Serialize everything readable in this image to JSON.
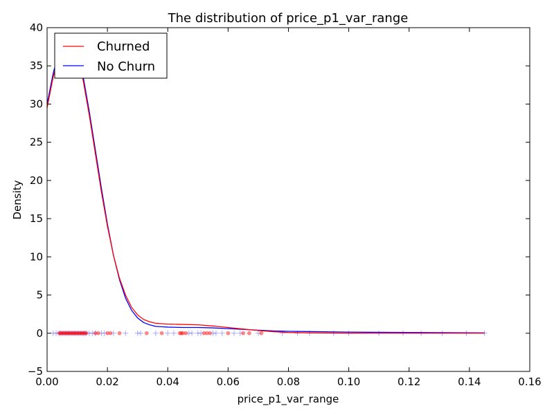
{
  "chart_data": {
    "type": "line",
    "title": "The distribution of price_p1_var_range",
    "xlabel": "price_p1_var_range",
    "ylabel": "Density",
    "xlim": [
      0.0,
      0.16
    ],
    "ylim": [
      -5,
      40
    ],
    "x_ticks": [
      0.0,
      0.02,
      0.04,
      0.06,
      0.08,
      0.1,
      0.12,
      0.14,
      0.16
    ],
    "x_tick_labels": [
      "0.00",
      "0.02",
      "0.04",
      "0.06",
      "0.08",
      "0.10",
      "0.12",
      "0.14",
      "0.16"
    ],
    "y_ticks": [
      -5,
      0,
      5,
      10,
      15,
      20,
      25,
      30,
      35,
      40
    ],
    "y_tick_labels": [
      "−5",
      "0",
      "5",
      "10",
      "15",
      "20",
      "25",
      "30",
      "35",
      "40"
    ],
    "grid": false,
    "legend": "top-left",
    "series": [
      {
        "name": "Churned",
        "color": "#ff0000",
        "x": [
          0.0,
          0.002,
          0.004,
          0.006,
          0.008,
          0.01,
          0.012,
          0.014,
          0.016,
          0.018,
          0.02,
          0.022,
          0.024,
          0.026,
          0.028,
          0.03,
          0.032,
          0.034,
          0.036,
          0.038,
          0.04,
          0.045,
          0.05,
          0.055,
          0.06,
          0.065,
          0.07,
          0.075,
          0.08,
          0.09,
          0.1,
          0.11,
          0.12,
          0.13,
          0.145
        ],
        "values": [
          29.5,
          33.5,
          36.5,
          38.0,
          38.0,
          36.5,
          33.0,
          28.5,
          23.5,
          18.5,
          14.0,
          10.2,
          7.2,
          5.0,
          3.4,
          2.4,
          1.8,
          1.5,
          1.3,
          1.25,
          1.2,
          1.15,
          1.1,
          0.95,
          0.75,
          0.55,
          0.35,
          0.2,
          0.1,
          0.03,
          0.01,
          0.0,
          0.0,
          0.0,
          0.0
        ]
      },
      {
        "name": "No Churn",
        "color": "#0000ff",
        "x": [
          0.0,
          0.002,
          0.004,
          0.006,
          0.008,
          0.01,
          0.012,
          0.014,
          0.016,
          0.018,
          0.02,
          0.022,
          0.024,
          0.026,
          0.028,
          0.03,
          0.032,
          0.034,
          0.036,
          0.038,
          0.04,
          0.045,
          0.05,
          0.055,
          0.06,
          0.065,
          0.07,
          0.075,
          0.08,
          0.09,
          0.1,
          0.11,
          0.12,
          0.13,
          0.145
        ],
        "values": [
          30.0,
          34.0,
          37.0,
          38.5,
          38.5,
          37.0,
          33.5,
          29.0,
          24.0,
          19.0,
          14.3,
          10.2,
          7.0,
          4.6,
          3.0,
          2.0,
          1.4,
          1.1,
          0.9,
          0.85,
          0.8,
          0.75,
          0.75,
          0.7,
          0.6,
          0.5,
          0.4,
          0.3,
          0.25,
          0.2,
          0.15,
          0.12,
          0.1,
          0.08,
          0.05
        ]
      }
    ],
    "rug": {
      "Churned": {
        "color": "#ff0000",
        "marker": "dot",
        "y": 0,
        "x": [
          0.004,
          0.0045,
          0.005,
          0.0055,
          0.006,
          0.0065,
          0.007,
          0.0075,
          0.008,
          0.0085,
          0.009,
          0.0095,
          0.01,
          0.0105,
          0.011,
          0.0115,
          0.012,
          0.0125,
          0.013,
          0.016,
          0.017,
          0.02,
          0.021,
          0.024,
          0.033,
          0.038,
          0.044,
          0.0445,
          0.045,
          0.046,
          0.052,
          0.053,
          0.054,
          0.06,
          0.065,
          0.067,
          0.071
        ]
      },
      "No Churn": {
        "color": "#0000ff",
        "marker": "plus",
        "y": 0,
        "x": [
          0.002,
          0.003,
          0.004,
          0.0045,
          0.005,
          0.0055,
          0.006,
          0.0065,
          0.007,
          0.0075,
          0.008,
          0.0085,
          0.009,
          0.0095,
          0.01,
          0.0105,
          0.011,
          0.0115,
          0.012,
          0.0125,
          0.013,
          0.014,
          0.015,
          0.016,
          0.018,
          0.019,
          0.022,
          0.026,
          0.03,
          0.031,
          0.036,
          0.04,
          0.042,
          0.047,
          0.048,
          0.05,
          0.051,
          0.055,
          0.056,
          0.058,
          0.062,
          0.064,
          0.07,
          0.078,
          0.083,
          0.087,
          0.095,
          0.1,
          0.11,
          0.118,
          0.124,
          0.131,
          0.139,
          0.145
        ]
      }
    }
  }
}
